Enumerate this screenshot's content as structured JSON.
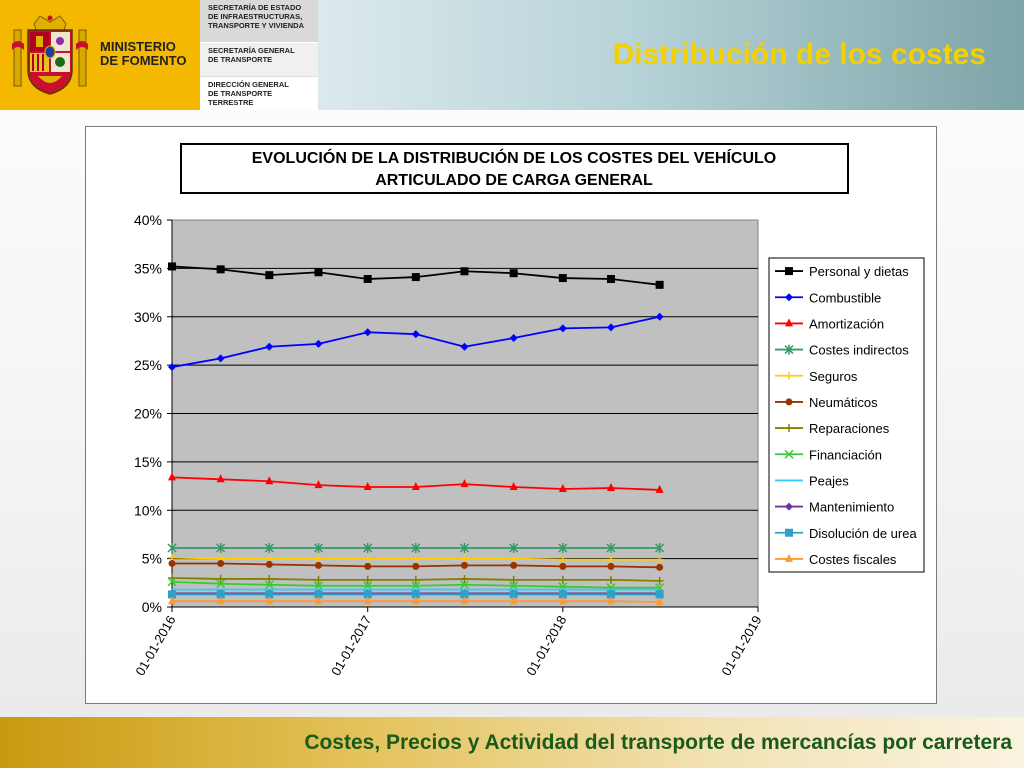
{
  "header": {
    "ministry": "MINISTERIO\nDE FOMENTO",
    "units": [
      "SECRETARÍA DE ESTADO\nDE INFRAESTRUCTURAS,\nTRANSPORTE Y VIVIENDA",
      "SECRETARÍA GENERAL\nDE TRANSPORTE",
      "DIRECCIÓN GENERAL\nDE TRANSPORTE\nTERRESTRE"
    ],
    "slide_title": "Distribución de los costes"
  },
  "footer": {
    "text": "Costes, Precios y Actividad del transporte de mercancías por carretera"
  },
  "colors": {
    "header_yellow": "#f5b800",
    "title_yellow": "#f5d000",
    "footer_green": "#1a5a1a",
    "plot_background": "#c0c0c0"
  },
  "chart_data": {
    "type": "line",
    "title": "EVOLUCIÓN  DE LA DISTRIBUCIÓN  DE LOS COSTES  DEL VEHÍCULO\nARTICULADO  DE CARGA GENERAL",
    "xlabel": "",
    "ylabel": "",
    "x_ticks": [
      "01-01-2016",
      "01-01-2017",
      "01-01-2018",
      "01-01-2019"
    ],
    "xlim": [
      "2016-01-01",
      "2019-01-01"
    ],
    "y_ticks": [
      "0%",
      "5%",
      "10%",
      "15%",
      "20%",
      "25%",
      "30%",
      "35%",
      "40%"
    ],
    "ylim": [
      0,
      40
    ],
    "grid": true,
    "legend": "right",
    "x": [
      "2016-01-01",
      "2016-04-01",
      "2016-07-01",
      "2016-10-01",
      "2017-01-01",
      "2017-04-01",
      "2017-07-01",
      "2017-10-01",
      "2018-01-01",
      "2018-04-01",
      "2018-07-01"
    ],
    "series": [
      {
        "name": "Personal y dietas",
        "color": "#000000",
        "marker": "square",
        "values": [
          35.2,
          34.9,
          34.3,
          34.6,
          33.9,
          34.1,
          34.7,
          34.5,
          34.0,
          33.9,
          33.3
        ]
      },
      {
        "name": "Combustible",
        "color": "#0000ff",
        "marker": "diamond",
        "values": [
          24.8,
          25.7,
          26.9,
          27.2,
          28.4,
          28.2,
          26.9,
          27.8,
          28.8,
          28.9,
          30.0
        ]
      },
      {
        "name": "Amortización",
        "color": "#ff0000",
        "marker": "triangle",
        "values": [
          13.4,
          13.2,
          13.0,
          12.6,
          12.4,
          12.4,
          12.7,
          12.4,
          12.2,
          12.3,
          12.1
        ]
      },
      {
        "name": "Costes indirectos",
        "color": "#339966",
        "marker": "asterisk",
        "values": [
          6.1,
          6.1,
          6.1,
          6.1,
          6.1,
          6.1,
          6.1,
          6.1,
          6.1,
          6.1,
          6.1
        ]
      },
      {
        "name": "Seguros",
        "color": "#ffcc00",
        "marker": "plus",
        "values": [
          5.1,
          5.0,
          5.0,
          5.0,
          5.0,
          5.0,
          5.0,
          5.0,
          4.9,
          4.9,
          4.9
        ]
      },
      {
        "name": "Neumáticos",
        "color": "#993300",
        "marker": "circle",
        "values": [
          4.5,
          4.5,
          4.4,
          4.3,
          4.2,
          4.2,
          4.3,
          4.3,
          4.2,
          4.2,
          4.1
        ]
      },
      {
        "name": "Reparaciones",
        "color": "#808000",
        "marker": "plus",
        "values": [
          3.0,
          2.9,
          2.9,
          2.8,
          2.8,
          2.8,
          2.9,
          2.8,
          2.8,
          2.8,
          2.7
        ]
      },
      {
        "name": "Financiación",
        "color": "#33cc33",
        "marker": "x",
        "values": [
          2.6,
          2.4,
          2.3,
          2.2,
          2.2,
          2.2,
          2.3,
          2.2,
          2.1,
          2.0,
          2.0
        ]
      },
      {
        "name": "Peajes",
        "color": "#33ccff",
        "marker": "none",
        "values": [
          1.8,
          1.8,
          1.8,
          1.8,
          1.8,
          1.8,
          1.8,
          1.8,
          1.8,
          1.8,
          1.8
        ]
      },
      {
        "name": "Mantenimiento",
        "color": "#7030a0",
        "marker": "diamond",
        "values": [
          1.4,
          1.4,
          1.4,
          1.4,
          1.4,
          1.4,
          1.4,
          1.4,
          1.4,
          1.4,
          1.4
        ]
      },
      {
        "name": "Disolución de urea",
        "color": "#31a0c8",
        "marker": "square",
        "values": [
          1.3,
          1.3,
          1.3,
          1.3,
          1.3,
          1.3,
          1.3,
          1.3,
          1.3,
          1.3,
          1.3
        ]
      },
      {
        "name": "Costes fiscales",
        "color": "#ff9933",
        "marker": "triangle",
        "values": [
          0.6,
          0.6,
          0.6,
          0.6,
          0.6,
          0.6,
          0.6,
          0.6,
          0.6,
          0.6,
          0.5
        ]
      }
    ]
  }
}
